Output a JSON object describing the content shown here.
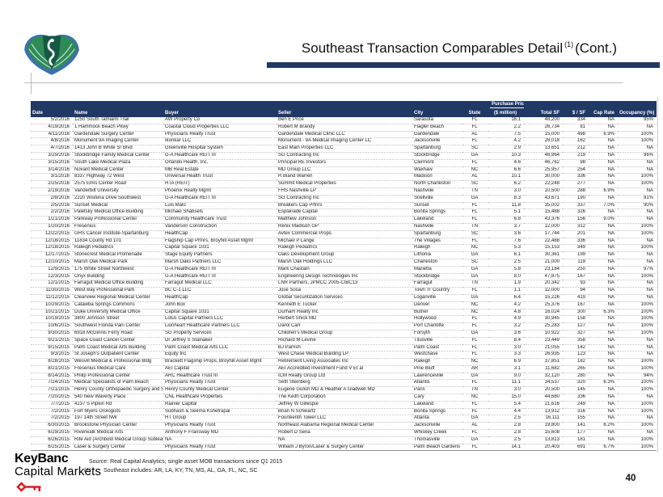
{
  "page": {
    "title": "Southeast Transaction Comparables Detail",
    "title_superscript": "(1)",
    "title_suffix": "(Cont.)",
    "page_number": "40",
    "accent_color": "#1f3864"
  },
  "brand": {
    "line1": "KeyBanc",
    "line2": "Capital Markets",
    "key_color": "#e01a22"
  },
  "footer": {
    "source_label": "Source:",
    "source_text": "Real Capital Analytics; single asset MOB transactions since Q1 2015",
    "footnote_marker": "(1)",
    "footnote_text": "Southeast includes: AR, LA, KY, TN, MS, AL, GA, FL, NC, SC"
  },
  "table": {
    "group_header": "Purchase Price",
    "columns": [
      "Date",
      "Name",
      "Buyer",
      "Seller",
      "City",
      "State",
      "($ million)",
      "Total SF",
      "$ / SF",
      "Cap Rate",
      "Occupancy (%)"
    ],
    "rows": [
      [
        "5/2/2016",
        "1250 South Tamiami Trail",
        "AW Property Co",
        "Ben E Price",
        "Sarasota",
        "FL",
        "16.1",
        "48,200",
        "334",
        "NA",
        "95%"
      ],
      [
        "4/19/2016",
        "1 Hammock Beach Pkwy",
        "Coastal Cloud Properties LLC",
        "Robert M Brandy",
        "Flagler Beach",
        "FL",
        "2.2",
        "26,734",
        "81",
        "NA",
        "NA"
      ],
      [
        "4/11/2016",
        "Gardendale Surgery Center",
        "Physicians Realty Trust",
        "Gardendale Medical Clinic LLC",
        "Gardendale",
        "AL",
        "7.5",
        "15,000",
        "498",
        "6.9%",
        "100%"
      ],
      [
        "4/8/2016",
        "Monument 9A Imaging Center",
        "Ikonkar LLC",
        "Monument - 9A Medical Imaging Center LC",
        "Jacksonville",
        "FL",
        "4.2",
        "26,018",
        "162",
        "NA",
        "100%"
      ],
      [
        "4/7/2016",
        "1413 John B White Sr Blvd",
        "Greenville Hospital System",
        "East Main Properties LLC",
        "Spartanburg",
        "SC",
        "2.9",
        "13,651",
        "212",
        "NA",
        "NA"
      ],
      [
        "3/29/2016",
        "Stockbridge Family Medical Center",
        "G-A Healthcare REIT III",
        "SG Contracting Inc",
        "Stockbridge",
        "GA",
        "10.3",
        "46,964",
        "219",
        "NA",
        "96%"
      ],
      [
        "3/15/2016",
        "South Lake Medical Plaza",
        "Orlando Health, Inc.",
        "Principal RE Investors",
        "Clermont",
        "FL",
        "4.6",
        "46,762",
        "98",
        "NA",
        "NA"
      ],
      [
        "3/14/2016",
        "Novant Medical Center",
        "MB Real Estate",
        "MD Group LLC",
        "Waxhaw",
        "NC",
        "6.6",
        "25,957",
        "254",
        "NA",
        "NA"
      ],
      [
        "3/1/2016",
        "8337 Highway 72 West",
        "Universal Health Trust",
        "R Bland Warren",
        "Madison",
        "AL",
        "10.1",
        "30,000",
        "336",
        "NA",
        "100%"
      ],
      [
        "2/25/2016",
        "2575 Elms Center Road",
        "HTA (REIT)",
        "Summit Medical Properties",
        "North Charleston",
        "SC",
        "6.2",
        "22,248",
        "277",
        "NA",
        "100%"
      ],
      [
        "2/19/2016",
        "Vanderbilt University",
        "Phoenix Realty Mgmt",
        "FHS Nashville LP",
        "Nashville",
        "TN",
        "3.0",
        "10,500",
        "288",
        "6.9%",
        "NA"
      ],
      [
        "2/8/2016",
        "2220 Wisteria Drive Southwest",
        "G-A Healthcare REIT III",
        "SG Contracting Inc",
        "Snellville",
        "GA",
        "8.3",
        "43,671",
        "190",
        "NA",
        "91%"
      ],
      [
        "2/5/2016",
        "Sunset Medical",
        "Luis Malo",
        "Breakers Cap Prtnrs",
        "Sunset",
        "FL",
        "11.8",
        "35,002",
        "337",
        "7.0%",
        "90%"
      ],
      [
        "2/2/2016",
        "Paletsky Medical Office Building",
        "Michael Shabsels",
        "Esplanade Capital",
        "Bonita Springs",
        "FL",
        "5.1",
        "15,488",
        "326",
        "NA",
        "NA"
      ],
      [
        "1/21/2016",
        "Parkway Professional Center",
        "Community Healthcare Trust",
        "Matthew Johnson",
        "Lakeland",
        "FL",
        "6.8",
        "43,376",
        "156",
        "9.0%",
        "NA"
      ],
      [
        "1/20/2016",
        "Fresenius",
        "Vanderson Construction",
        "Renix Madison GP",
        "Nashville",
        "TN",
        "3.7",
        "12,000",
        "312",
        "NA",
        "100%"
      ],
      [
        "12/22/2015",
        "GHS Cancer Institute-Spartanburg",
        "HealthCap",
        "Avtex Commercial Props",
        "Spartanburg",
        "SC",
        "3.6",
        "17,744",
        "201",
        "NA",
        "100%"
      ],
      [
        "12/18/2015",
        "11834 County Rd 101",
        "Flagship Cap Prtnrs, Broyhill Asset Mgmt",
        "Michael P Lange",
        "The Villages",
        "FL",
        "7.6",
        "22,488",
        "336",
        "NA",
        "NA"
      ],
      [
        "12/18/2015",
        "Raleigh Pediatrics",
        "Capital Square 1031",
        "Raleigh Pediatrics",
        "Raleigh",
        "NC",
        "5.3",
        "15,153",
        "349",
        "NA",
        "100%"
      ],
      [
        "12/17/2015",
        "Stonecrest Medical Promenade",
        "Stage Equity Partners",
        "Oaks Development Group",
        "Lithonia",
        "GA",
        "6.1",
        "30,361",
        "199",
        "NA",
        "NA"
      ],
      [
        "12/10/2015",
        "Marsh Oak Medical Park",
        "Marsh Oaks Partners LLC",
        "Marsh Oak Holdings LLC",
        "Charleston",
        "SC",
        "2.5",
        "21,000",
        "119",
        "NA",
        "NA"
      ],
      [
        "12/9/2015",
        "175 White Street Northwest",
        "G-A Healthcare REIT III",
        "Mark Chastain",
        "Marietta",
        "GA",
        "5.8",
        "23,184",
        "250",
        "NA",
        "97%"
      ],
      [
        "12/3/2015",
        "Onyx Building",
        "G-A Healthcare REIT III",
        "Engineering Design Technologies Inc",
        "Stockbridge",
        "GA",
        "8.0",
        "47,875",
        "167",
        "NA",
        "100%"
      ],
      [
        "12/1/2015",
        "Farragut Medical Office Building",
        "Farragut Medical LLC",
        "LNR Partners, JPMCC 2005-CIBC13",
        "Farragut",
        "TN",
        "1.9",
        "20,342",
        "93",
        "NA",
        "NA"
      ],
      [
        "11/30/2015",
        "West Bay Professional Park",
        "BC C-1 LLC",
        "Jose Sosa",
        "Town 'n' Country",
        "FL",
        "1.1",
        "12,000",
        "94",
        "NA",
        "NA"
      ],
      [
        "11/12/2015",
        "Clearview Regional Medical Center",
        "HealthCap",
        "Global Securitization Services",
        "Loganville",
        "GA",
        "6.4",
        "15,226",
        "419",
        "NA",
        "NA"
      ],
      [
        "10/29/2015",
        "Catawba Springs Commons",
        "John Box",
        "Kenneth E Tucker",
        "Denver",
        "NC",
        "4.2",
        "25,376",
        "167",
        "NA",
        "100%"
      ],
      [
        "10/21/2015",
        "Duke University Medical Office",
        "Capital Square 1031",
        "Durham Realty Inc",
        "Butner",
        "NC",
        "4.8",
        "16,024",
        "300",
        "6.3%",
        "100%"
      ],
      [
        "10/19/2015",
        "3800 Johnson Street",
        "Lotus Capital Partners LLC",
        "Herbert Shick MD",
        "Hollywood",
        "FL",
        "4.9",
        "30,945",
        "158",
        "NA",
        "100%"
      ],
      [
        "10/6/2015",
        "Southwest Florida Pain Center",
        "Lionheart Healthcare Partners LLC",
        "Darol Carr",
        "Port Charlotte",
        "FL",
        "3.2",
        "25,283",
        "127",
        "NA",
        "100%"
      ],
      [
        "9/30/2015",
        "6918 McGinnis Ferry Road",
        "SG Property Services",
        "Children's Medical Group",
        "Forsyth",
        "GA",
        "3.6",
        "10,922",
        "327",
        "NA",
        "100%"
      ],
      [
        "9/21/2015",
        "Space Coast Cancer Center",
        "Dr Jeffrey S Stalnaker",
        "Richard M Levine",
        "Titusville",
        "FL",
        "8.4",
        "23,449",
        "358",
        "NA",
        "NA"
      ],
      [
        "9/15/2015",
        "Palm Coast Medical Arts Building",
        "Palm Coast Medical Arts LLC",
        "BJ Parrish",
        "Palm Coast",
        "FL",
        "3.0",
        "21,055",
        "142",
        "NA",
        "NA"
      ],
      [
        "9/3/2015",
        "St Joseph's Outpatient Center",
        "Equity Inc",
        "West Chase Medical Building LP",
        "Westchase",
        "FL",
        "3.3",
        "26,935",
        "123",
        "NA",
        "NA"
      ],
      [
        "8/28/2015",
        "Wesvill Medical & Professional Bldg",
        "Brackett Flagship Props, Broyhill Asset Mgmt",
        "Retirement Living Associates Inc",
        "Raleigh",
        "NC",
        "6.9",
        "37,851",
        "182",
        "NA",
        "100%"
      ],
      [
        "8/21/2015",
        "Fresenius Medical Care",
        "AEI Capital",
        "AEI Accredited Investment Fund V Et al",
        "Pine Bluff",
        "AR",
        "3.1",
        "11,682",
        "265",
        "NA",
        "100%"
      ],
      [
        "8/14/2015",
        "Philip Professional Center",
        "ARC Healthcare Trust III",
        "ICM Realty Group Ltd",
        "Lawrenceville",
        "GA",
        "9.0",
        "32,120",
        "280",
        "NA",
        "94%"
      ],
      [
        "7/24/2015",
        "Medical Specialists of Palm Beach",
        "Physicians Realty Trust",
        "Seth Steinberg",
        "Atlantis",
        "FL",
        "11.1",
        "34,537",
        "320",
        "6.3%",
        "100%"
      ],
      [
        "7/21/2015",
        "Henry County Orthopaedic Surgery and Sports Medici",
        "Henry County Medical Center",
        "Eugene Gulish MD & Heather A Gladwell MD",
        "Paris",
        "TN",
        "3.0",
        "20,500",
        "145",
        "NA",
        "100%"
      ],
      [
        "7/20/2015",
        "540 New Waverly Place",
        "CNL Healthcare Properties",
        "The Keith Corporation",
        "Cary",
        "NC",
        "15.0",
        "44,680",
        "336",
        "NA",
        "NA"
      ],
      [
        "7/7/2015",
        "4237 S Pipkin Rd",
        "Rainier Capital",
        "Jeffrey W Gillespie",
        "Lakeland",
        "FL",
        "5.4",
        "21,616",
        "249",
        "NA",
        "100%"
      ],
      [
        "7/2/2015",
        "Fort Myers Urologists",
        "Subhash & Seema Kshetrapal",
        "Brian N Schwartz",
        "Bonita Springs",
        "FL",
        "4.4",
        "13,912",
        "316",
        "NA",
        "100%"
      ],
      [
        "7/2/2015",
        "197 14th Street NW",
        "HT Group",
        "Fourteenth Tower LLC",
        "Atlanta",
        "GA",
        "2.5",
        "16,111",
        "155",
        "NA",
        "NA"
      ],
      [
        "6/30/2015",
        "Brookstone Physician Center",
        "Physicians Realty Trust",
        "Northeast Alabama Regional Medical Center",
        "Jacksonville",
        "AL",
        "2.8",
        "19,800",
        "141",
        "8.2%",
        "100%"
      ],
      [
        "6/29/2015",
        "Riverwalk Medical Arts",
        "Anthony F Fransway MD",
        "Robert D Sena",
        "Whiskey Creek",
        "FL",
        "2.8",
        "15,608",
        "177",
        "NA",
        "NA"
      ],
      [
        "6/26/2015",
        "Rite Aid (Archbold Medical Group Sublease)",
        "NA",
        "NA",
        "Thomasville",
        "GA",
        "2.5",
        "13,813",
        "181",
        "NA",
        "100%"
      ],
      [
        "6/25/2015",
        "Laser & Surgery Center",
        "Physicians Realty Trust",
        "William J Byron/Laser & Surgery Center",
        "Palm Beach Gardens",
        "FL",
        "14.1",
        "20,403",
        "691",
        "6.7%",
        "100%"
      ]
    ]
  }
}
